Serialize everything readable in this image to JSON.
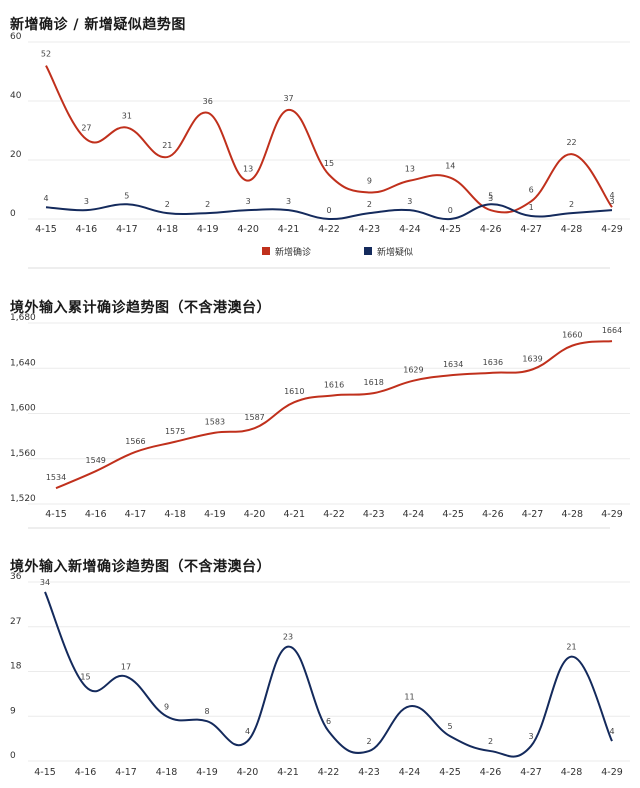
{
  "colors": {
    "red": "#c0301c",
    "navy": "#142a5c",
    "grid": "#ebebeb"
  },
  "chart_data": [
    {
      "type": "line",
      "title": "新增确诊 / 新增疑似趋势图",
      "categories": [
        "4-15",
        "4-16",
        "4-17",
        "4-18",
        "4-19",
        "4-20",
        "4-21",
        "4-22",
        "4-23",
        "4-24",
        "4-25",
        "4-26",
        "4-27",
        "4-28",
        "4-29"
      ],
      "ylim": [
        0,
        60
      ],
      "yticks": [
        "0",
        "20",
        "40",
        "60"
      ],
      "series": [
        {
          "name": "新增确诊",
          "color": "#c0301c",
          "values": [
            52,
            27,
            31,
            21,
            36,
            13,
            37,
            15,
            9,
            13,
            14,
            3,
            6,
            22,
            4
          ]
        },
        {
          "name": "新增疑似",
          "color": "#142a5c",
          "values": [
            4,
            3,
            5,
            2,
            2,
            3,
            3,
            0,
            2,
            3,
            0,
            5,
            1,
            2,
            3
          ]
        }
      ],
      "legend": "bottom-center"
    },
    {
      "type": "line",
      "title": "境外输入累计确诊趋势图（不含港澳台）",
      "categories": [
        "4-15",
        "4-16",
        "4-17",
        "4-18",
        "4-19",
        "4-20",
        "4-21",
        "4-22",
        "4-23",
        "4-24",
        "4-25",
        "4-26",
        "4-27",
        "4-28",
        "4-29"
      ],
      "ylim": [
        1520,
        1680
      ],
      "yticks": [
        "1,520",
        "1,560",
        "1,600",
        "1,640",
        "1,680"
      ],
      "series": [
        {
          "color": "#c0301c",
          "values": [
            1534,
            1549,
            1566,
            1575,
            1583,
            1587,
            1610,
            1616,
            1618,
            1629,
            1634,
            1636,
            1639,
            1660,
            1664
          ]
        }
      ]
    },
    {
      "type": "line",
      "title": "境外输入新增确诊趋势图（不含港澳台）",
      "categories": [
        "4-15",
        "4-16",
        "4-17",
        "4-18",
        "4-19",
        "4-20",
        "4-21",
        "4-22",
        "4-23",
        "4-24",
        "4-25",
        "4-26",
        "4-27",
        "4-28",
        "4-29"
      ],
      "ylim": [
        0,
        36
      ],
      "yticks": [
        "0",
        "9",
        "18",
        "27",
        "36"
      ],
      "series": [
        {
          "color": "#142a5c",
          "values": [
            34,
            15,
            17,
            9,
            8,
            4,
            23,
            6,
            2,
            11,
            5,
            2,
            3,
            21,
            4
          ]
        }
      ]
    }
  ]
}
